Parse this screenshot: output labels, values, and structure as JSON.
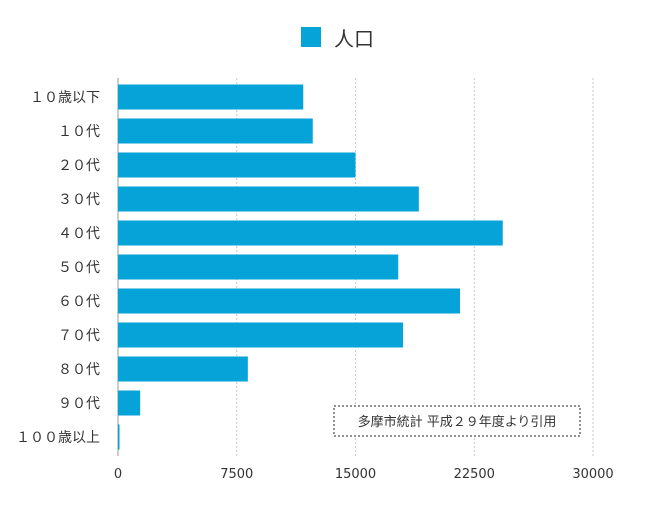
{
  "chart_data": {
    "type": "bar",
    "orientation": "horizontal",
    "categories": [
      "１０歳以下",
      "１０代",
      "２０代",
      "３０代",
      "４０代",
      "５０代",
      "６０代",
      "７０代",
      "８０代",
      "９０代",
      "１００歳以上"
    ],
    "series": [
      {
        "name": "人口",
        "values": [
          11700,
          12300,
          15000,
          19000,
          24300,
          17700,
          21600,
          18000,
          8200,
          1400,
          80
        ]
      }
    ],
    "xlim": [
      0,
      30000
    ],
    "xticks": [
      "0",
      "7500",
      "15000",
      "22500",
      "30000"
    ],
    "grid": "vertical dashed",
    "legend": "top-center",
    "annotation": "多摩市統計 平成２９年度より引用",
    "colors": {
      "bar": "#06a3d9",
      "grid": "#c8c8c8",
      "text": "#333333"
    }
  }
}
